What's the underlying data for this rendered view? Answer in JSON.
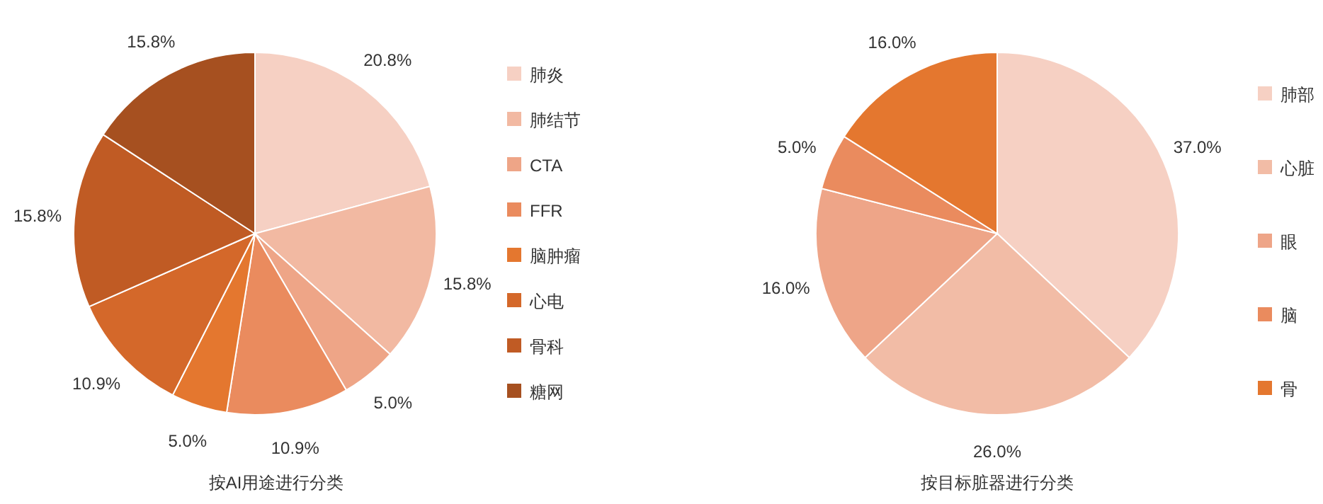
{
  "chart_data": [
    {
      "type": "pie",
      "title": "按AI用途进行分类",
      "categories": [
        "肺炎",
        "肺结节",
        "CTA",
        "FFR",
        "脑肿瘤",
        "心电",
        "骨科",
        "糖网"
      ],
      "values": [
        20.8,
        15.8,
        5.0,
        10.9,
        5.0,
        10.9,
        15.8,
        15.8
      ],
      "value_labels": [
        "20.8%",
        "15.8%",
        "5.0%",
        "10.9%",
        "5.0%",
        "10.9%",
        "15.8%",
        "15.8%"
      ],
      "colors": [
        "#f6d0c3",
        "#f2b9a2",
        "#eea587",
        "#ea8b5e",
        "#e4772f",
        "#d4682a",
        "#c05b24",
        "#a65020"
      ],
      "legend": "right"
    },
    {
      "type": "pie",
      "title": "按目标脏器进行分类",
      "categories": [
        "肺部",
        "心脏",
        "眼",
        "脑",
        "骨"
      ],
      "values": [
        37.0,
        26.0,
        16.0,
        5.0,
        16.0
      ],
      "value_labels": [
        "37.0%",
        "26.0%",
        "16.0%",
        "5.0%",
        "16.0%"
      ],
      "colors": [
        "#f6d0c3",
        "#f2bca6",
        "#eea588",
        "#ea8b5e",
        "#e4772f"
      ],
      "legend": "right"
    }
  ]
}
